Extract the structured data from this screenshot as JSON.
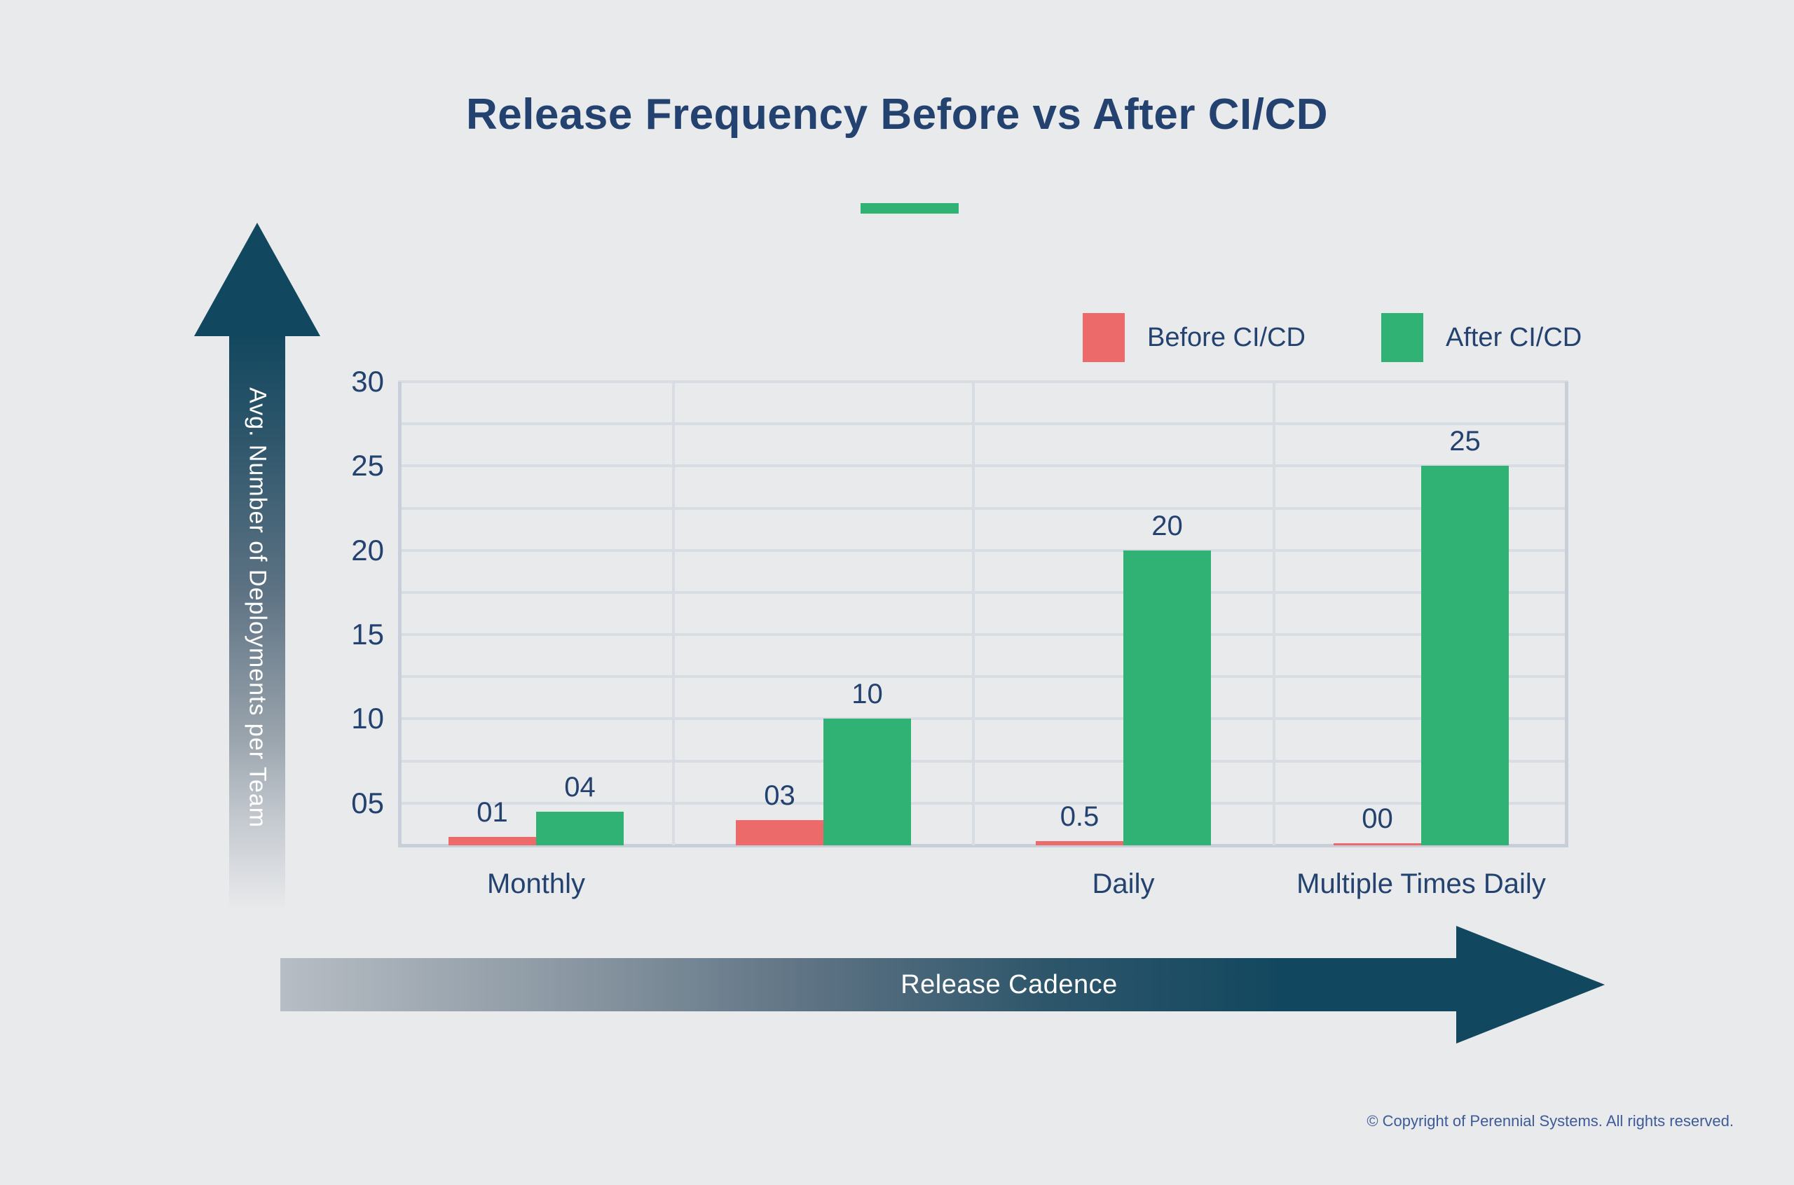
{
  "title": "Release Frequency Before vs After CI/CD",
  "axes": {
    "y_title": "Avg. Number of Deployments per Team",
    "x_title": "Release Cadence",
    "y_ticks": [
      "30",
      "25",
      "20",
      "15",
      "10",
      "05"
    ]
  },
  "footer": {
    "copyright": "© Copyright of Perennial Systems. All rights reserved."
  },
  "palette": {
    "background": "#E9EAEC",
    "text_navy": "#24426F",
    "arrow_dark": "#12485F",
    "gridline": "#D8DCE3",
    "accent_underline": "#2FB273"
  },
  "chart_data": {
    "type": "bar",
    "title": "Release Frequency Before vs After CI/CD",
    "categories": [
      "Monthly",
      "",
      "Daily",
      "Multiple Times Daily"
    ],
    "series": [
      {
        "name": "Before CI/CD",
        "color": "#ED6A6A",
        "values": [
          1,
          3,
          0.5,
          0
        ],
        "labels": [
          "01",
          "03",
          "0.5",
          "00"
        ]
      },
      {
        "name": "After CI/CD",
        "color": "#2FB273",
        "values": [
          4,
          10,
          20,
          25
        ],
        "labels": [
          "04",
          "10",
          "20",
          "25"
        ]
      }
    ],
    "xlabel": "Release Cadence",
    "ylabel": "Avg. Number of Deployments per Team",
    "ylim": [
      0,
      30
    ],
    "tick_step": 5,
    "grid": true,
    "legend_position": "top-right"
  }
}
